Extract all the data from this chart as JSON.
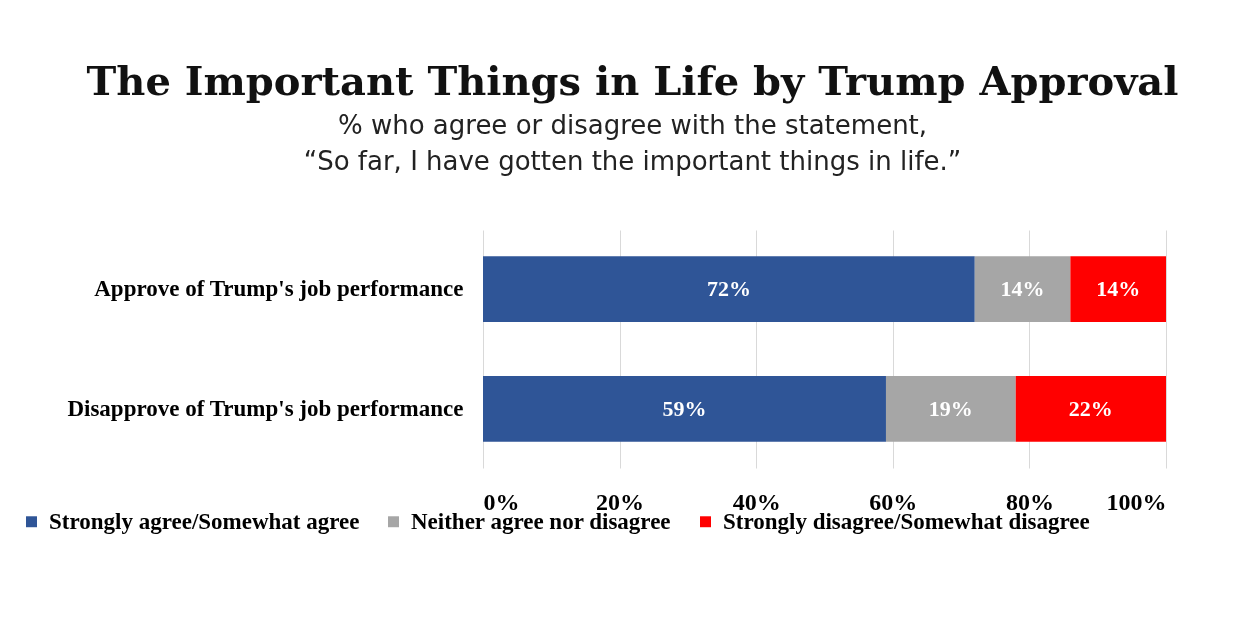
{
  "chart_data": {
    "type": "bar",
    "orientation": "horizontal",
    "stacked": true,
    "title": "The Important Things in Life by Trump Approval",
    "subtitle": "% who agree or disagree with the statement,\n“So far, I have gotten the important things in life.”",
    "categories": [
      "Approve of Trump's job performance",
      "Disapprove of Trump's job performance"
    ],
    "series": [
      {
        "name": "Strongly agree/Somewhat agree",
        "color": "#2f5597",
        "values": [
          72,
          59
        ],
        "value_labels": [
          "72%",
          "59%"
        ]
      },
      {
        "name": "Neither agree nor disagree",
        "color": "#a6a6a6",
        "values": [
          14,
          19
        ],
        "value_labels": [
          "14%",
          "19%"
        ]
      },
      {
        "name": "Strongly disagree/Somewhat disagree",
        "color": "#ff0000",
        "values": [
          14,
          22
        ],
        "value_labels": [
          "14%",
          "22%"
        ]
      }
    ],
    "xlim": [
      0,
      100
    ],
    "xticks": [
      {
        "value": 0,
        "label": "0%"
      },
      {
        "value": 20,
        "label": "20%"
      },
      {
        "value": 40,
        "label": "40%"
      },
      {
        "value": 60,
        "label": "60%"
      },
      {
        "value": 80,
        "label": "80%"
      },
      {
        "value": 100,
        "label": "100%"
      }
    ],
    "grid": "x",
    "legend": "bottom"
  }
}
